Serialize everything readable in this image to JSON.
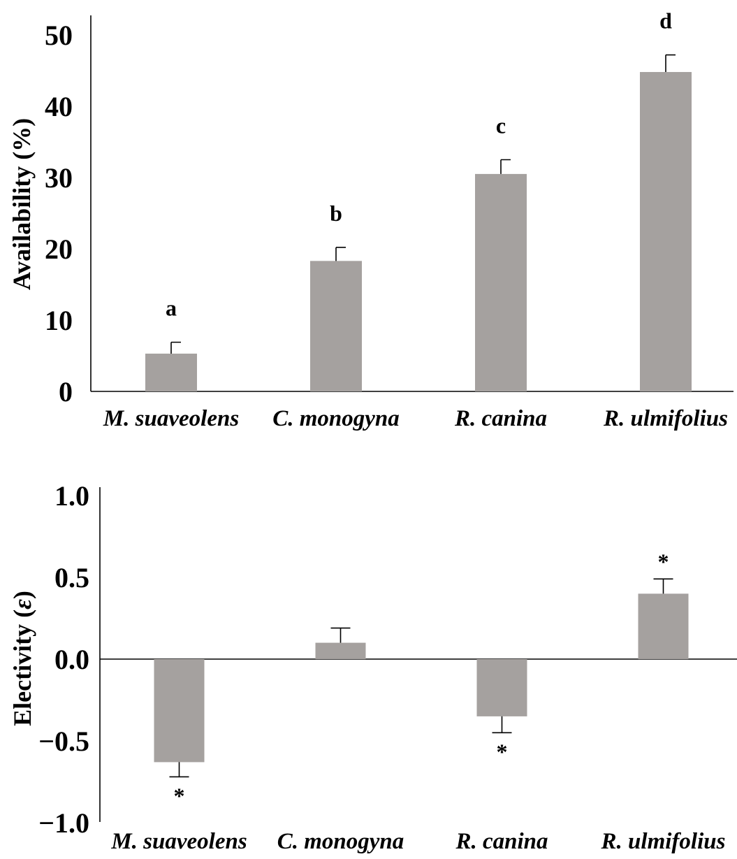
{
  "colors": {
    "bar": "#a5a19f",
    "axis": "#000000"
  },
  "chart_data": [
    {
      "type": "bar",
      "categories": [
        "M. suaveolens",
        "C. monogyna",
        "R. canina",
        "R. ulmifolius"
      ],
      "values": [
        5.3,
        18.3,
        30.5,
        44.8
      ],
      "errors": [
        1.6,
        1.9,
        2.0,
        2.4
      ],
      "significance_labels": [
        "a",
        "b",
        "c",
        "d"
      ],
      "ylabel": "Availability (%)",
      "ylim": [
        0,
        52
      ],
      "yticks": [
        "0",
        "10",
        "20",
        "30",
        "40",
        "50"
      ],
      "grid": false
    },
    {
      "type": "bar",
      "categories": [
        "M. suaveolens",
        "C. monogyna",
        "R. canina",
        "R. ulmifolius"
      ],
      "values": [
        -0.63,
        0.1,
        -0.35,
        0.4
      ],
      "errors": [
        0.09,
        0.09,
        0.1,
        0.09
      ],
      "significance_labels": [
        "*",
        "",
        "*",
        "*"
      ],
      "ylabel_text": "Electivity (",
      "ylabel_symbol": "ε",
      "ylabel_close": ")",
      "ylim": [
        -1.05,
        1.05
      ],
      "yticks": [
        "1.0",
        "0.5",
        "0.0",
        "−0.5",
        "−1.0"
      ],
      "grid": false
    }
  ]
}
